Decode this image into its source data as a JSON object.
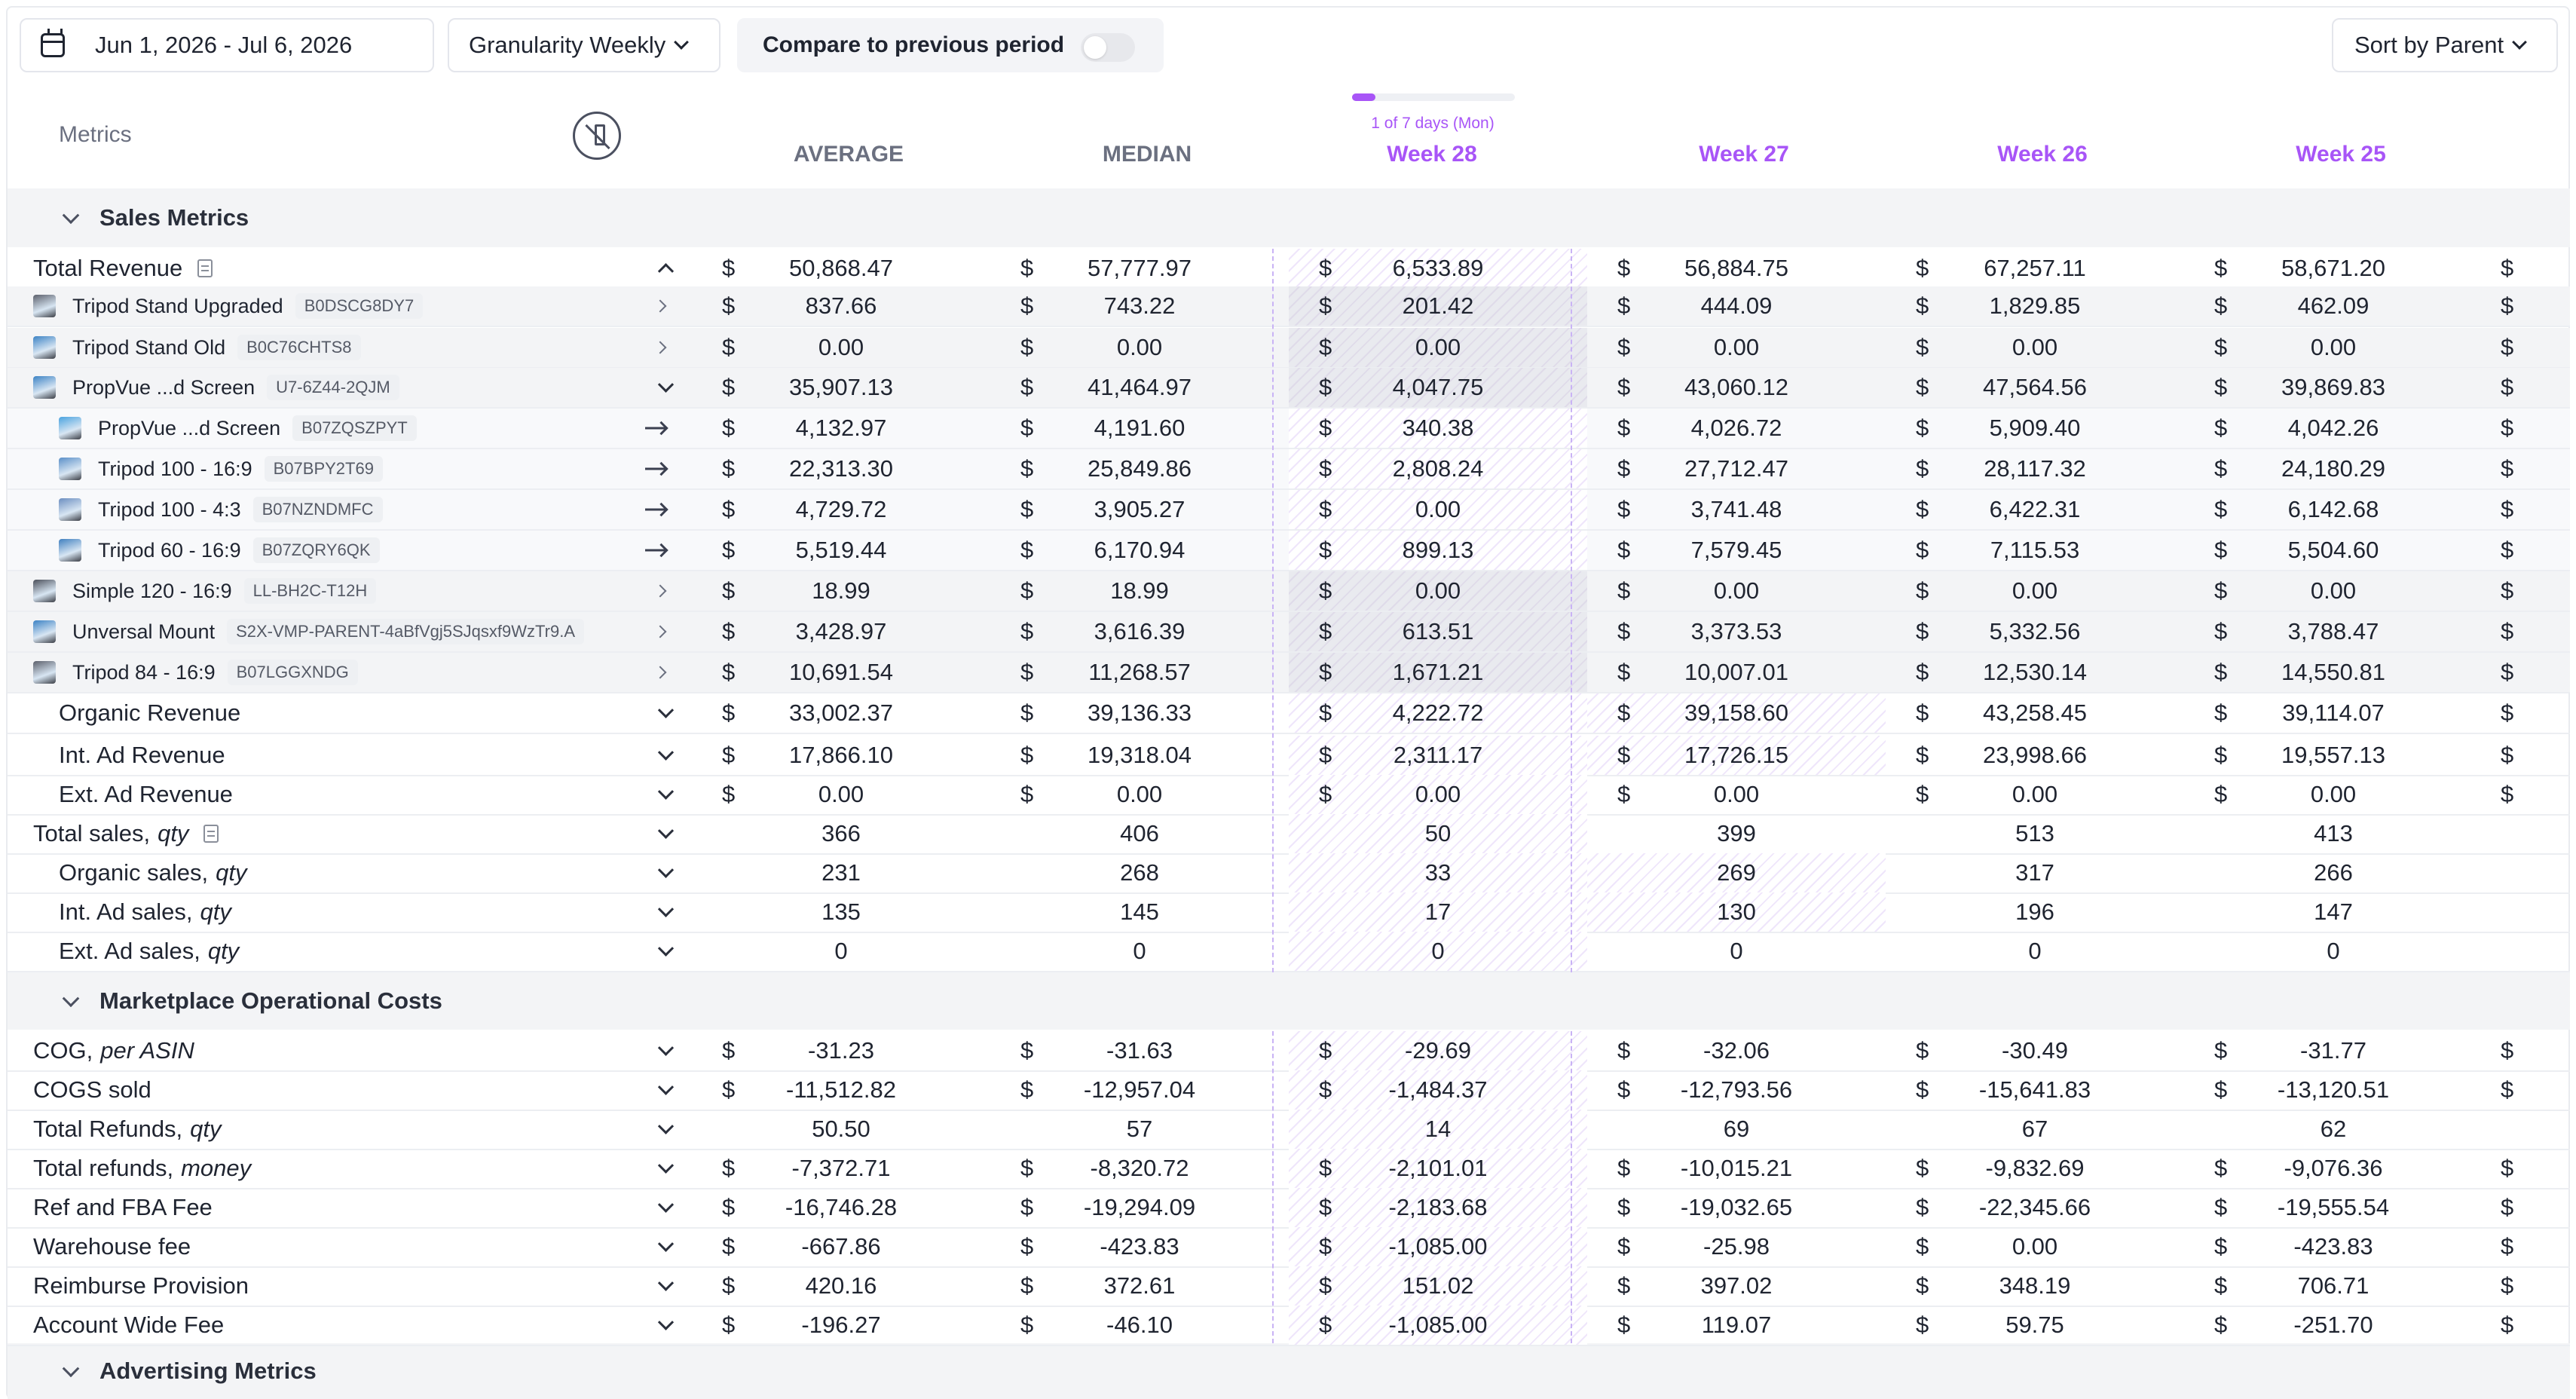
{
  "toolbar": {
    "date_range": "Jun 1, 2026 - Jul 6, 2026",
    "granularity_label": "Granularity Weekly",
    "compare_label": "Compare to previous period",
    "compare_enabled": false,
    "sort_label": "Sort by Parent"
  },
  "header": {
    "metrics_label": "Metrics",
    "columns": [
      "AVERAGE",
      "MEDIAN",
      "Week 28",
      "Week 27",
      "Week 26",
      "Week 25"
    ],
    "progress_label": "1 of 7 days (Mon)",
    "progress_fraction": 0.142857,
    "accent_color": "#a855f7"
  },
  "sections": [
    {
      "title": "Sales Metrics"
    },
    {
      "title": "Marketplace Operational Costs"
    },
    {
      "title": "Advertising Metrics"
    }
  ],
  "rows": [
    {
      "label": "Total Revenue",
      "values": [
        "50,868.47",
        "57,777.97",
        "6,533.89",
        "56,884.75",
        "67,257.11",
        "58,671.20"
      ]
    },
    {
      "label": "Tripod Stand Upgraded",
      "asin": "B0DSCG8DY7",
      "values": [
        "837.66",
        "743.22",
        "201.42",
        "444.09",
        "1,829.85",
        "462.09"
      ]
    },
    {
      "label": "Tripod Stand Old",
      "asin": "B0C76CHTS8",
      "values": [
        "0.00",
        "0.00",
        "0.00",
        "0.00",
        "0.00",
        "0.00"
      ]
    },
    {
      "label": "PropVue ...d Screen",
      "asin": "U7-6Z44-2QJM",
      "values": [
        "35,907.13",
        "41,464.97",
        "4,047.75",
        "43,060.12",
        "47,564.56",
        "39,869.83"
      ]
    },
    {
      "label": "PropVue ...d Screen",
      "asin": "B07ZQSZPYT",
      "values": [
        "4,132.97",
        "4,191.60",
        "340.38",
        "4,026.72",
        "5,909.40",
        "4,042.26"
      ]
    },
    {
      "label": "Tripod 100 - 16:9",
      "asin": "B07BPY2T69",
      "values": [
        "22,313.30",
        "25,849.86",
        "2,808.24",
        "27,712.47",
        "28,117.32",
        "24,180.29"
      ]
    },
    {
      "label": "Tripod 100 - 4:3",
      "asin": "B07NZNDMFC",
      "values": [
        "4,729.72",
        "3,905.27",
        "0.00",
        "3,741.48",
        "6,422.31",
        "6,142.68"
      ]
    },
    {
      "label": "Tripod 60 - 16:9",
      "asin": "B07ZQRY6QK",
      "values": [
        "5,519.44",
        "6,170.94",
        "899.13",
        "7,579.45",
        "7,115.53",
        "5,504.60"
      ]
    },
    {
      "label": "Simple 120 - 16:9",
      "asin": "LL-BH2C-T12H",
      "values": [
        "18.99",
        "18.99",
        "0.00",
        "0.00",
        "0.00",
        "0.00"
      ]
    },
    {
      "label": "Unversal Mount",
      "asin": "S2X-VMP-PARENT-4aBfVgj5SJqsxf9WzTr9.A",
      "values": [
        "3,428.97",
        "3,616.39",
        "613.51",
        "3,373.53",
        "5,332.56",
        "3,788.47"
      ]
    },
    {
      "label": "Tripod 84 - 16:9",
      "asin": "B07LGGXNDG",
      "values": [
        "10,691.54",
        "11,268.57",
        "1,671.21",
        "10,007.01",
        "12,530.14",
        "14,550.81"
      ]
    },
    {
      "label": "Organic Revenue",
      "values": [
        "33,002.37",
        "39,136.33",
        "4,222.72",
        "39,158.60",
        "43,258.45",
        "39,114.07"
      ]
    },
    {
      "label": "Int. Ad Revenue",
      "values": [
        "17,866.10",
        "19,318.04",
        "2,311.17",
        "17,726.15",
        "23,998.66",
        "19,557.13"
      ]
    },
    {
      "label": "Ext. Ad Revenue",
      "values": [
        "0.00",
        "0.00",
        "0.00",
        "0.00",
        "0.00",
        "0.00"
      ]
    },
    {
      "label": "Total sales,",
      "label_em": "qty",
      "values": [
        "366",
        "406",
        "50",
        "399",
        "513",
        "413"
      ]
    },
    {
      "label": "Organic sales,",
      "label_em": "qty",
      "values": [
        "231",
        "268",
        "33",
        "269",
        "317",
        "266"
      ]
    },
    {
      "label": "Int. Ad sales,",
      "label_em": "qty",
      "values": [
        "135",
        "145",
        "17",
        "130",
        "196",
        "147"
      ]
    },
    {
      "label": "Ext. Ad sales,",
      "label_em": "qty",
      "values": [
        "0",
        "0",
        "0",
        "0",
        "0",
        "0"
      ]
    },
    {
      "label": "COG,",
      "label_em": "per ASIN",
      "values": [
        "-31.23",
        "-31.63",
        "-29.69",
        "-32.06",
        "-30.49",
        "-31.77"
      ]
    },
    {
      "label": "COGS sold",
      "values": [
        "-11,512.82",
        "-12,957.04",
        "-1,484.37",
        "-12,793.56",
        "-15,641.83",
        "-13,120.51"
      ]
    },
    {
      "label": "Total Refunds,",
      "label_em": "qty",
      "values": [
        "50.50",
        "57",
        "14",
        "69",
        "67",
        "62"
      ]
    },
    {
      "label": "Total refunds,",
      "label_em": "money",
      "values": [
        "-7,372.71",
        "-8,320.72",
        "-2,101.01",
        "-10,015.21",
        "-9,832.69",
        "-9,076.36"
      ]
    },
    {
      "label": "Ref and FBA Fee",
      "values": [
        "-16,746.28",
        "-19,294.09",
        "-2,183.68",
        "-19,032.65",
        "-22,345.66",
        "-19,555.54"
      ]
    },
    {
      "label": "Warehouse fee",
      "values": [
        "-667.86",
        "-423.83",
        "-1,085.00",
        "-25.98",
        "0.00",
        "-423.83"
      ]
    },
    {
      "label": "Reimburse Provision",
      "values": [
        "420.16",
        "372.61",
        "151.02",
        "397.02",
        "348.19",
        "706.71"
      ]
    },
    {
      "label": "Account Wide Fee",
      "values": [
        "-196.27",
        "-46.10",
        "-1,085.00",
        "119.07",
        "59.75",
        "-251.70"
      ]
    }
  ],
  "currency_symbol": "$",
  "icons": [
    "calendar-icon",
    "chevron-down-icon",
    "unpin-icon",
    "note-icon",
    "chevron-up-icon",
    "chevron-right-icon",
    "arrow-right-icon"
  ]
}
